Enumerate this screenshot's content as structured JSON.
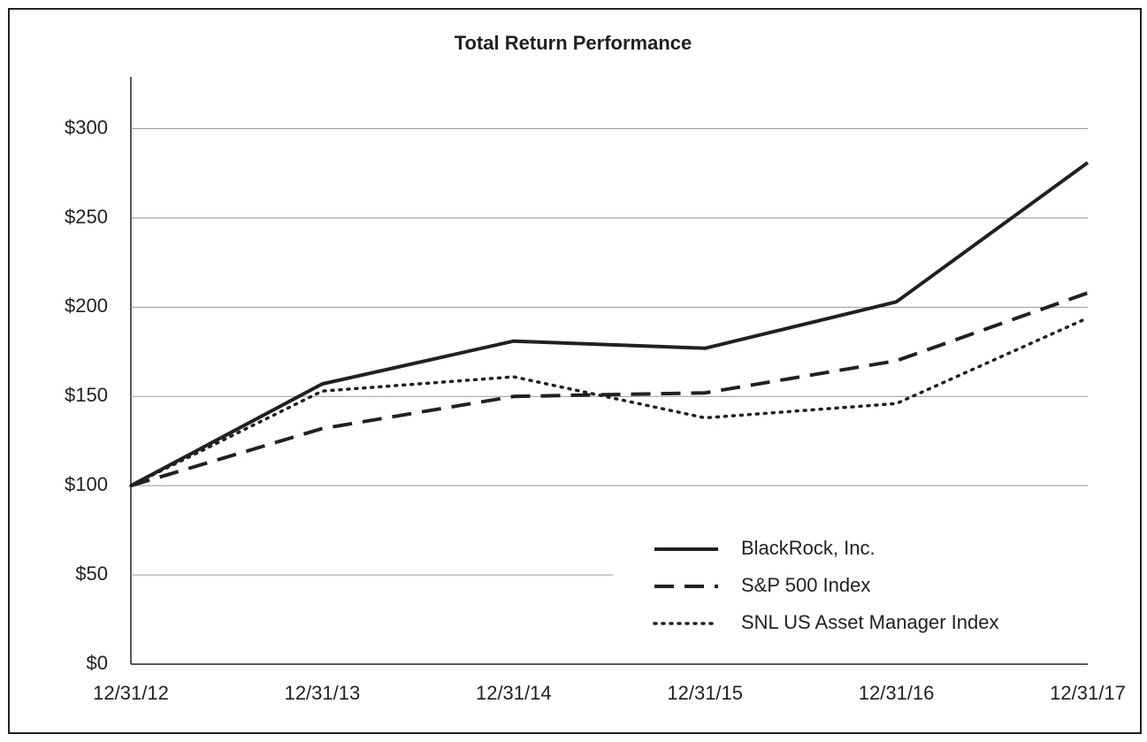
{
  "chart_data": {
    "type": "line",
    "title": "Total Return Performance",
    "categories": [
      "12/31/12",
      "12/31/13",
      "12/31/14",
      "12/31/15",
      "12/31/16",
      "12/31/17"
    ],
    "series": [
      {
        "name": "BlackRock, Inc.",
        "color": "#231f20",
        "dash": "solid",
        "values": [
          100,
          157,
          181,
          177,
          203,
          281
        ]
      },
      {
        "name": "S&P 500 Index",
        "color": "#231f20",
        "dash": "dashed",
        "values": [
          100,
          132,
          150,
          152,
          170,
          208
        ]
      },
      {
        "name": "SNL US Asset Manager Index",
        "color": "#231f20",
        "dash": "dotted",
        "values": [
          100,
          153,
          161,
          138,
          146,
          194
        ]
      }
    ],
    "ylim": [
      0,
      329
    ],
    "yticks": [
      {
        "value": 0,
        "label": "$0"
      },
      {
        "value": 50,
        "label": "$50"
      },
      {
        "value": 100,
        "label": "$100"
      },
      {
        "value": 150,
        "label": "$150"
      },
      {
        "value": 200,
        "label": "$200"
      },
      {
        "value": 250,
        "label": "$250"
      },
      {
        "value": 300,
        "label": "$300"
      }
    ],
    "grid": true,
    "legend": "lower right"
  }
}
